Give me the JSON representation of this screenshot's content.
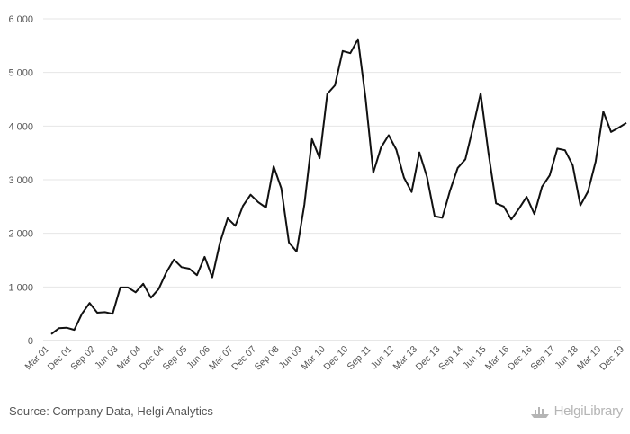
{
  "chart_data": {
    "type": "line",
    "title": "",
    "xlabel": "",
    "ylabel": "",
    "ylim": [
      0,
      6000
    ],
    "yticks": [
      0,
      1000,
      2000,
      3000,
      4000,
      5000,
      6000
    ],
    "ytick_labels": [
      "0",
      "1 000",
      "2 000",
      "3 000",
      "4 000",
      "5 000",
      "6 000"
    ],
    "xtick_labels": [
      "Mar 01",
      "Dec 01",
      "Sep 02",
      "Jun 03",
      "Mar 04",
      "Dec 04",
      "Sep 05",
      "Jun 06",
      "Mar 07",
      "Dec 07",
      "Sep 08",
      "Jun 09",
      "Mar 10",
      "Dec 10",
      "Sep 11",
      "Jun 12",
      "Mar 13",
      "Dec 13",
      "Sep 14",
      "Jun 15",
      "Mar 16",
      "Dec 16",
      "Sep 17",
      "Jun 18",
      "Mar 19",
      "Dec 19"
    ],
    "grid": true,
    "series": [
      {
        "values": [
          120,
          230,
          240,
          200,
          500,
          700,
          520,
          530,
          500,
          990,
          990,
          900,
          1060,
          800,
          960,
          1270,
          1510,
          1370,
          1340,
          1220,
          1560,
          1180,
          1820,
          2280,
          2140,
          2510,
          2720,
          2580,
          2480,
          3250,
          2840,
          1830,
          1660,
          2530,
          3760,
          3400,
          4600,
          4760,
          5400,
          5360,
          5620,
          4510,
          3130,
          3600,
          3830,
          3560,
          3040,
          2770,
          3510,
          3050,
          2320,
          2290,
          2790,
          3220,
          3380,
          3970,
          4610,
          3520,
          2560,
          2500,
          2260,
          2460,
          2680,
          2360,
          2870,
          3080,
          3580,
          3550,
          3270,
          2520,
          2780,
          3340,
          4270,
          3890,
          3970,
          4060
        ]
      }
    ]
  },
  "footer": {
    "source": "Source: Company Data, Helgi Analytics",
    "brand": "HelgiLibrary",
    "brand_icon": "ship-icon"
  }
}
